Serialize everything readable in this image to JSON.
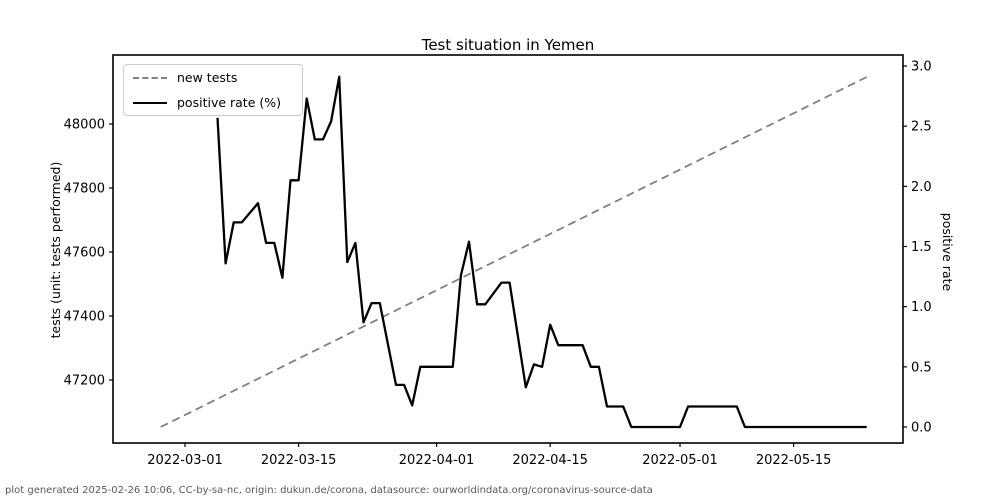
{
  "chart": {
    "title": "Test situation in Yemen",
    "ylabel_left": "tests (unit: tests performed)",
    "ylabel_right": "positive rate"
  },
  "legend": {
    "items": [
      {
        "label": "new tests",
        "style": "dashed",
        "color": "#808080"
      },
      {
        "label": "positive rate (%)",
        "style": "solid",
        "color": "#000000"
      }
    ]
  },
  "footer": {
    "text": "plot generated 2025-02-26 10:06, CC-by-sa-nc, origin: dukun.de/corona, datasource: ourworldindata.org/coronavirus-source-data"
  },
  "chart_data": {
    "type": "line",
    "title": "Test situation in Yemen",
    "grid": false,
    "legend_position": "upper left",
    "x_ticks": [
      "2022-03-01",
      "2022-03-15",
      "2022-04-01",
      "2022-04-15",
      "2022-05-01",
      "2022-05-15"
    ],
    "y_ticks_left": [
      "47200",
      "47400",
      "47600",
      "47800",
      "48000"
    ],
    "y_ticks_right": [
      "0.0",
      "0.5",
      "1.0",
      "1.5",
      "2.0",
      "2.5",
      "3.0"
    ],
    "xlim": [
      "2022-02-20",
      "2022-05-28"
    ],
    "ylim_left": [
      47003,
      48216
    ],
    "ylim_right": [
      -0.13,
      3.09
    ],
    "series": [
      {
        "name": "new tests",
        "axis": "left",
        "line": "dashed",
        "color": "#808080",
        "points": [
          [
            "2022-02-26",
            47053
          ],
          [
            "2022-05-24",
            48147
          ]
        ]
      },
      {
        "name": "positive rate (%)",
        "axis": "right",
        "line": "solid",
        "color": "#000000",
        "points": [
          [
            "2022-03-05",
            2.57
          ],
          [
            "2022-03-06",
            1.36
          ],
          [
            "2022-03-07",
            1.7
          ],
          [
            "2022-03-08",
            1.7
          ],
          [
            "2022-03-10",
            1.86
          ],
          [
            "2022-03-11",
            1.53
          ],
          [
            "2022-03-12",
            1.53
          ],
          [
            "2022-03-13",
            1.24
          ],
          [
            "2022-03-14",
            2.05
          ],
          [
            "2022-03-15",
            2.05
          ],
          [
            "2022-03-16",
            2.73
          ],
          [
            "2022-03-17",
            2.39
          ],
          [
            "2022-03-18",
            2.39
          ],
          [
            "2022-03-19",
            2.54
          ],
          [
            "2022-03-20",
            2.91
          ],
          [
            "2022-03-21",
            1.37
          ],
          [
            "2022-03-22",
            1.53
          ],
          [
            "2022-03-23",
            0.87
          ],
          [
            "2022-03-24",
            1.03
          ],
          [
            "2022-03-25",
            1.03
          ],
          [
            "2022-03-27",
            0.35
          ],
          [
            "2022-03-28",
            0.35
          ],
          [
            "2022-03-29",
            0.18
          ],
          [
            "2022-03-30",
            0.5
          ],
          [
            "2022-04-03",
            0.5
          ],
          [
            "2022-04-04",
            1.26
          ],
          [
            "2022-04-05",
            1.54
          ],
          [
            "2022-04-06",
            1.02
          ],
          [
            "2022-04-07",
            1.02
          ],
          [
            "2022-04-09",
            1.2
          ],
          [
            "2022-04-10",
            1.2
          ],
          [
            "2022-04-12",
            0.33
          ],
          [
            "2022-04-13",
            0.52
          ],
          [
            "2022-04-14",
            0.5
          ],
          [
            "2022-04-15",
            0.85
          ],
          [
            "2022-04-16",
            0.68
          ],
          [
            "2022-04-19",
            0.68
          ],
          [
            "2022-04-20",
            0.5
          ],
          [
            "2022-04-21",
            0.5
          ],
          [
            "2022-04-22",
            0.17
          ],
          [
            "2022-04-24",
            0.17
          ],
          [
            "2022-04-25",
            0.0
          ],
          [
            "2022-05-01",
            0.0
          ],
          [
            "2022-05-02",
            0.17
          ],
          [
            "2022-05-08",
            0.17
          ],
          [
            "2022-05-09",
            0.0
          ],
          [
            "2022-05-24",
            0.0
          ]
        ]
      }
    ]
  }
}
